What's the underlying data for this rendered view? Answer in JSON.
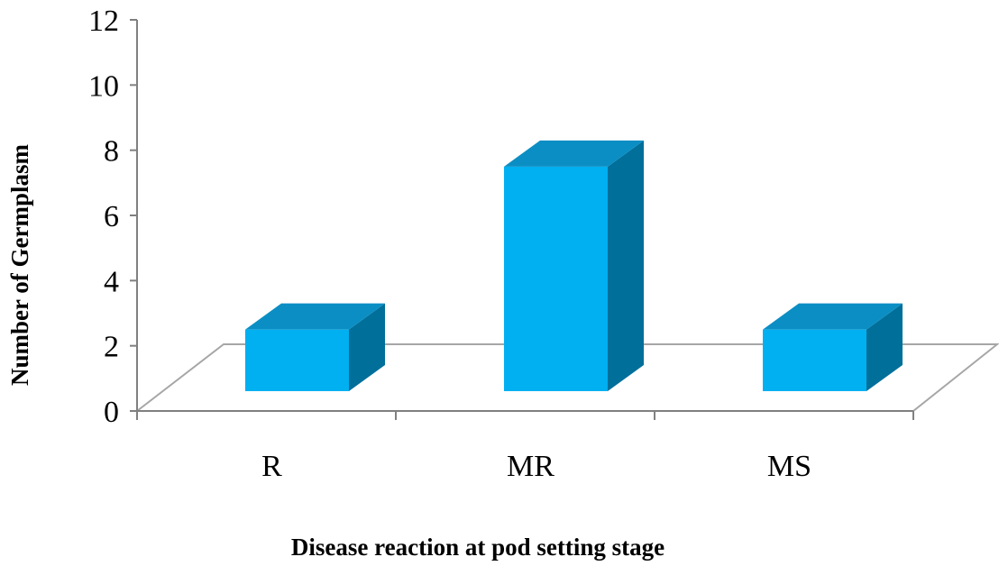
{
  "chart_data": {
    "type": "bar",
    "style": "3d-column",
    "title": "",
    "xlabel": "Disease reaction at pod setting stage",
    "ylabel": "Number of Germplasm",
    "categories": [
      "R",
      "MR",
      "MS"
    ],
    "values": [
      2,
      7,
      2
    ],
    "ylim": [
      0,
      12
    ],
    "yticks": [
      0,
      2,
      4,
      6,
      8,
      10,
      12
    ],
    "grid": false,
    "legend": "none",
    "colors": {
      "bar_front": "#00b0f0",
      "bar_top": "#0b8ec4",
      "bar_side": "#006f9a",
      "floor_line": "#a6a6a6",
      "axis_line": "#808080"
    }
  }
}
